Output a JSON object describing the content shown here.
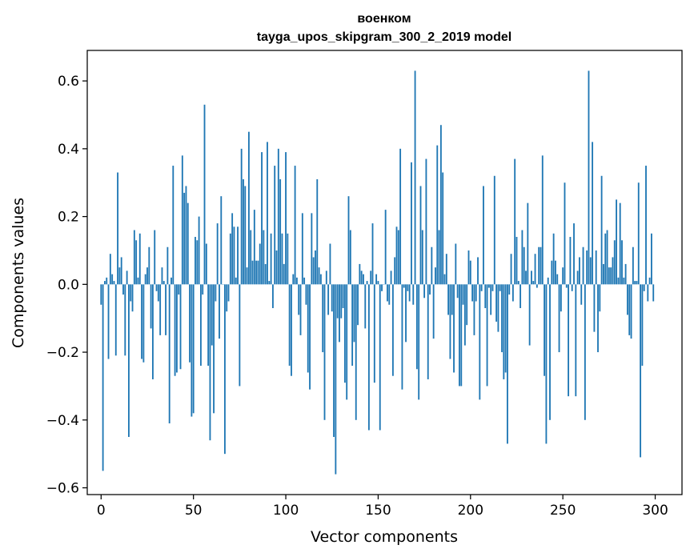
{
  "chart_data": {
    "type": "bar",
    "title": "военком",
    "subtitle": "tayga_upos_skipgram_300_2_2019 model",
    "xlabel": "Vector components",
    "ylabel": "Components values",
    "xlim": [
      -7.5,
      314.5
    ],
    "ylim": [
      -0.62,
      0.69
    ],
    "xticks": [
      0,
      50,
      100,
      150,
      200,
      250,
      300
    ],
    "xtick_labels": [
      "0",
      "50",
      "100",
      "150",
      "200",
      "250",
      "300"
    ],
    "yticks": [
      -0.6,
      -0.4,
      -0.2,
      0.0,
      0.2,
      0.4,
      0.6
    ],
    "ytick_labels": [
      "−0.6",
      "−0.4",
      "−0.2",
      "0.0",
      "0.2",
      "0.4",
      "0.6"
    ],
    "bar_color": "#1f77b4",
    "grid": false,
    "x": [
      0,
      1,
      2,
      3,
      4,
      5,
      6,
      7,
      8,
      9,
      10,
      11,
      12,
      13,
      14,
      15,
      16,
      17,
      18,
      19,
      20,
      21,
      22,
      23,
      24,
      25,
      26,
      27,
      28,
      29,
      30,
      31,
      32,
      33,
      34,
      35,
      36,
      37,
      38,
      39,
      40,
      41,
      42,
      43,
      44,
      45,
      46,
      47,
      48,
      49,
      50,
      51,
      52,
      53,
      54,
      55,
      56,
      57,
      58,
      59,
      60,
      61,
      62,
      63,
      64,
      65,
      66,
      67,
      68,
      69,
      70,
      71,
      72,
      73,
      74,
      75,
      76,
      77,
      78,
      79,
      80,
      81,
      82,
      83,
      84,
      85,
      86,
      87,
      88,
      89,
      90,
      91,
      92,
      93,
      94,
      95,
      96,
      97,
      98,
      99,
      100,
      101,
      102,
      103,
      104,
      105,
      106,
      107,
      108,
      109,
      110,
      111,
      112,
      113,
      114,
      115,
      116,
      117,
      118,
      119,
      120,
      121,
      122,
      123,
      124,
      125,
      126,
      127,
      128,
      129,
      130,
      131,
      132,
      133,
      134,
      135,
      136,
      137,
      138,
      139,
      140,
      141,
      142,
      143,
      144,
      145,
      146,
      147,
      148,
      149,
      150,
      151,
      152,
      153,
      154,
      155,
      156,
      157,
      158,
      159,
      160,
      161,
      162,
      163,
      164,
      165,
      166,
      167,
      168,
      169,
      170,
      171,
      172,
      173,
      174,
      175,
      176,
      177,
      178,
      179,
      180,
      181,
      182,
      183,
      184,
      185,
      186,
      187,
      188,
      189,
      190,
      191,
      192,
      193,
      194,
      195,
      196,
      197,
      198,
      199,
      200,
      201,
      202,
      203,
      204,
      205,
      206,
      207,
      208,
      209,
      210,
      211,
      212,
      213,
      214,
      215,
      216,
      217,
      218,
      219,
      220,
      221,
      222,
      223,
      224,
      225,
      226,
      227,
      228,
      229,
      230,
      231,
      232,
      233,
      234,
      235,
      236,
      237,
      238,
      239,
      240,
      241,
      242,
      243,
      244,
      245,
      246,
      247,
      248,
      249,
      250,
      251,
      252,
      253,
      254,
      255,
      256,
      257,
      258,
      259,
      260,
      261,
      262,
      263,
      264,
      265,
      266,
      267,
      268,
      269,
      270,
      271,
      272,
      273,
      274,
      275,
      276,
      277,
      278,
      279,
      280,
      281,
      282,
      283,
      284,
      285,
      286,
      287,
      288,
      289,
      290,
      291,
      292,
      293,
      294,
      295,
      296,
      297,
      298,
      299
    ],
    "values": [
      -0.06,
      -0.55,
      0.01,
      0.02,
      -0.22,
      0.09,
      0.03,
      0.01,
      -0.21,
      0.33,
      0.05,
      0.08,
      -0.03,
      -0.21,
      0.04,
      -0.45,
      -0.05,
      -0.08,
      0.16,
      0.13,
      0.02,
      0.15,
      -0.22,
      -0.23,
      0.03,
      0.05,
      0.11,
      -0.13,
      -0.28,
      0.16,
      -0.02,
      -0.05,
      -0.15,
      0.05,
      0.01,
      -0.15,
      0.11,
      -0.41,
      0.02,
      0.35,
      -0.27,
      -0.26,
      -0.03,
      -0.25,
      0.38,
      0.27,
      0.29,
      0.24,
      -0.23,
      -0.39,
      -0.38,
      0.14,
      0.13,
      0.2,
      -0.24,
      -0.03,
      0.53,
      0.12,
      -0.24,
      -0.46,
      -0.18,
      -0.38,
      -0.05,
      0.18,
      -0.16,
      0.26,
      0.0,
      -0.5,
      -0.08,
      -0.05,
      0.15,
      0.21,
      0.17,
      0.02,
      0.17,
      -0.3,
      0.4,
      0.31,
      0.29,
      0.05,
      0.45,
      0.16,
      0.07,
      0.22,
      0.07,
      0.07,
      0.12,
      0.39,
      0.16,
      0.06,
      0.42,
      0.01,
      0.15,
      -0.07,
      0.35,
      0.1,
      0.4,
      0.31,
      0.15,
      0.06,
      0.39,
      0.15,
      -0.24,
      -0.27,
      0.03,
      0.35,
      0.02,
      -0.09,
      -0.15,
      0.21,
      0.02,
      -0.06,
      -0.26,
      -0.31,
      0.21,
      0.08,
      0.1,
      0.31,
      0.05,
      0.03,
      -0.2,
      -0.4,
      0.04,
      -0.09,
      0.12,
      -0.08,
      -0.45,
      -0.56,
      -0.1,
      -0.17,
      -0.1,
      -0.07,
      -0.29,
      -0.34,
      0.26,
      0.16,
      -0.24,
      -0.17,
      -0.4,
      -0.12,
      0.06,
      0.04,
      0.03,
      -0.13,
      0.01,
      -0.43,
      0.04,
      0.18,
      -0.29,
      0.03,
      0.01,
      -0.43,
      -0.02,
      0.0,
      0.22,
      -0.05,
      -0.06,
      0.04,
      -0.27,
      0.08,
      0.17,
      0.16,
      0.4,
      -0.31,
      -0.01,
      -0.17,
      -0.02,
      -0.05,
      0.36,
      -0.06,
      0.63,
      -0.25,
      -0.34,
      0.29,
      0.16,
      -0.04,
      0.37,
      -0.28,
      -0.03,
      0.11,
      -0.16,
      0.05,
      0.41,
      0.16,
      0.47,
      0.33,
      0.03,
      0.09,
      -0.09,
      -0.22,
      -0.09,
      -0.26,
      0.12,
      -0.04,
      -0.3,
      -0.3,
      -0.06,
      -0.18,
      -0.12,
      0.1,
      0.07,
      -0.05,
      -0.15,
      -0.05,
      0.08,
      -0.34,
      -0.02,
      0.29,
      -0.07,
      -0.3,
      -0.01,
      -0.09,
      -0.02,
      0.32,
      -0.11,
      -0.14,
      -0.02,
      -0.2,
      -0.28,
      -0.26,
      -0.47,
      -0.03,
      0.09,
      -0.05,
      0.37,
      0.14,
      0.01,
      -0.07,
      0.16,
      0.11,
      0.04,
      0.24,
      -0.18,
      0.04,
      0.01,
      0.09,
      -0.01,
      0.11,
      0.11,
      0.38,
      -0.27,
      -0.47,
      0.02,
      -0.4,
      0.07,
      0.15,
      0.07,
      0.03,
      -0.2,
      -0.08,
      0.05,
      0.3,
      -0.01,
      -0.33,
      0.14,
      -0.02,
      0.18,
      -0.33,
      0.04,
      0.08,
      -0.06,
      0.11,
      -0.4,
      0.1,
      0.63,
      0.08,
      0.42,
      -0.14,
      0.1,
      -0.2,
      -0.08,
      0.32,
      0.06,
      0.15,
      0.16,
      0.05,
      0.05,
      0.08,
      0.13,
      0.25,
      0.02,
      0.24,
      0.13,
      0.02,
      0.06,
      -0.09,
      -0.15,
      -0.16,
      0.11,
      0.01,
      0.01,
      0.3,
      -0.51,
      -0.24,
      -0.02,
      0.35,
      -0.05,
      0.02,
      0.15,
      -0.05
    ]
  }
}
